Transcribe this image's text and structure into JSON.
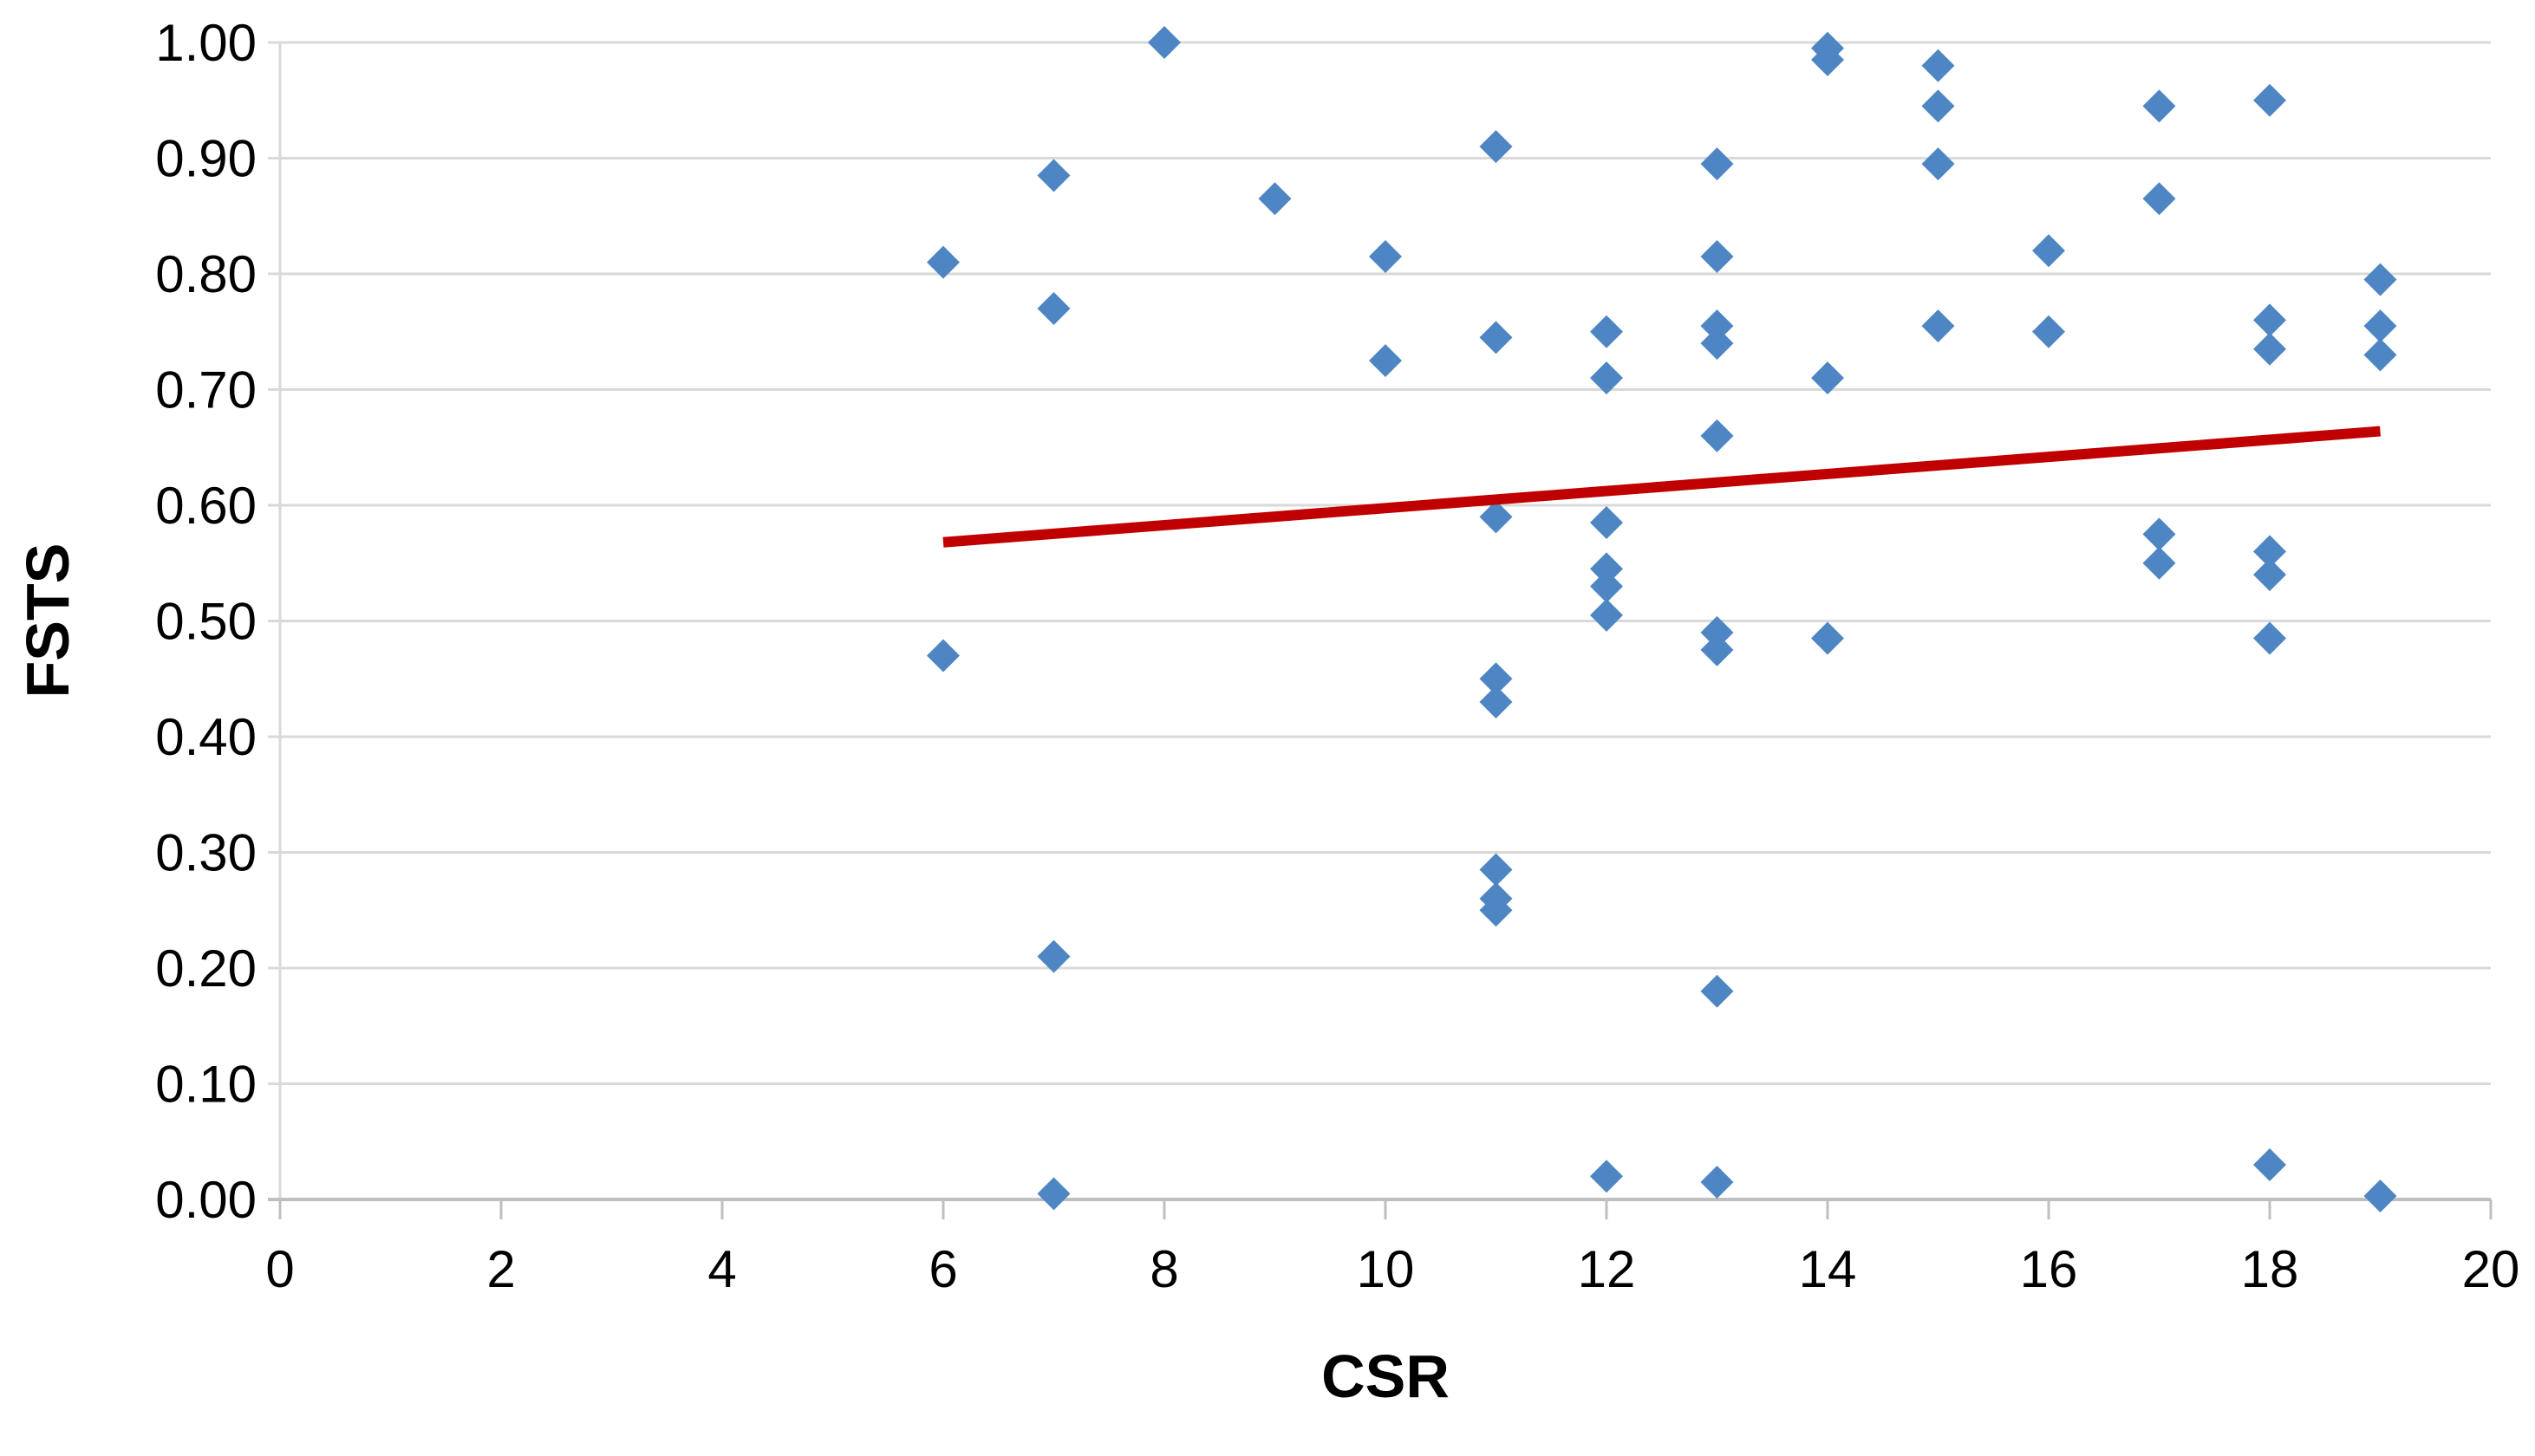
{
  "chart_data": {
    "type": "scatter",
    "title": "",
    "xlabel": "CSR",
    "ylabel": "FSTS",
    "xlim": [
      0,
      20
    ],
    "ylim": [
      0.0,
      1.0
    ],
    "x_ticks": [
      0,
      2,
      4,
      6,
      8,
      10,
      12,
      14,
      16,
      18,
      20
    ],
    "y_ticks": [
      "0.00",
      "0.10",
      "0.20",
      "0.30",
      "0.40",
      "0.50",
      "0.60",
      "0.70",
      "0.80",
      "0.90",
      "1.00"
    ],
    "grid": true,
    "legend_position": "none",
    "marker": "diamond",
    "colors": {
      "marker": "#4E86C4",
      "trendline": "#C00000",
      "gridline": "#D9D9D9",
      "axis_line": "#BFBFBF",
      "tick_text": "#000000"
    },
    "points": [
      [
        6,
        0.81
      ],
      [
        6,
        0.47
      ],
      [
        7,
        0.885
      ],
      [
        7,
        0.77
      ],
      [
        7,
        0.21
      ],
      [
        7,
        0.005
      ],
      [
        8,
        1.0
      ],
      [
        9,
        0.865
      ],
      [
        10,
        0.815
      ],
      [
        10,
        0.725
      ],
      [
        11,
        0.91
      ],
      [
        11,
        0.745
      ],
      [
        11,
        0.59
      ],
      [
        11,
        0.45
      ],
      [
        11,
        0.43
      ],
      [
        11,
        0.285
      ],
      [
        11,
        0.26
      ],
      [
        11,
        0.25
      ],
      [
        12,
        0.75
      ],
      [
        12,
        0.71
      ],
      [
        12,
        0.585
      ],
      [
        12,
        0.545
      ],
      [
        12,
        0.53
      ],
      [
        12,
        0.505
      ],
      [
        12,
        0.02
      ],
      [
        13,
        0.895
      ],
      [
        13,
        0.815
      ],
      [
        13,
        0.755
      ],
      [
        13,
        0.74
      ],
      [
        13,
        0.66
      ],
      [
        13,
        0.49
      ],
      [
        13,
        0.475
      ],
      [
        13,
        0.18
      ],
      [
        13,
        0.015
      ],
      [
        14,
        0.995
      ],
      [
        14,
        0.985
      ],
      [
        14,
        0.71
      ],
      [
        14,
        0.485
      ],
      [
        15,
        0.98
      ],
      [
        15,
        0.945
      ],
      [
        15,
        0.895
      ],
      [
        15,
        0.755
      ],
      [
        16,
        0.82
      ],
      [
        16,
        0.75
      ],
      [
        17,
        0.945
      ],
      [
        17,
        0.865
      ],
      [
        17,
        0.575
      ],
      [
        17,
        0.55
      ],
      [
        18,
        0.95
      ],
      [
        18,
        0.76
      ],
      [
        18,
        0.735
      ],
      [
        18,
        0.56
      ],
      [
        18,
        0.54
      ],
      [
        18,
        0.485
      ],
      [
        18,
        0.03
      ],
      [
        19,
        0.795
      ],
      [
        19,
        0.755
      ],
      [
        19,
        0.73
      ],
      [
        19,
        0.003
      ]
    ],
    "trendline": {
      "x1": 6,
      "y1": 0.568,
      "x2": 19,
      "y2": 0.664
    }
  }
}
